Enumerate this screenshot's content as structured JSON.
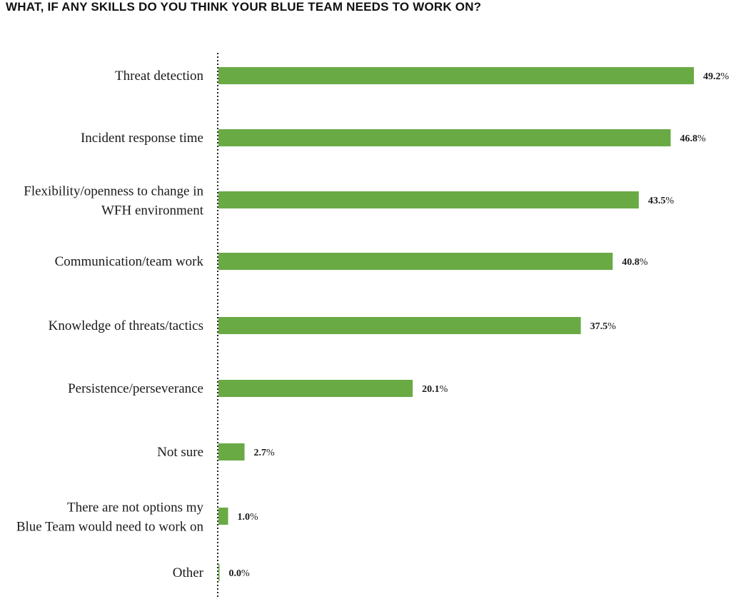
{
  "chart_data": {
    "type": "bar",
    "orientation": "horizontal",
    "title": "WHAT, IF ANY SKILLS DO YOU THINK YOUR BLUE TEAM NEEDS TO WORK ON?",
    "categories": [
      "Threat detection",
      "Incident response time",
      "Flexibility/openness to change in WFH environment",
      "Communication/team work",
      "Knowledge of threats/tactics",
      "Persistence/perseverance",
      "Not sure",
      "There are not options my Blue Team would need to work on",
      "Other"
    ],
    "category_lines": [
      [
        "Threat detection"
      ],
      [
        "Incident response time"
      ],
      [
        "Flexibility/openness to change in",
        "WFH environment"
      ],
      [
        "Communication/team work"
      ],
      [
        "Knowledge of threats/tactics"
      ],
      [
        "Persistence/perseverance"
      ],
      [
        "Not sure"
      ],
      [
        "There are not options my",
        "Blue Team would need to work on"
      ],
      [
        "Other"
      ]
    ],
    "values": [
      49.2,
      46.8,
      43.5,
      40.8,
      37.5,
      20.1,
      2.7,
      1.0,
      0.0
    ],
    "value_labels": [
      "49.2",
      "46.8",
      "43.5",
      "40.8",
      "37.5",
      "20.1",
      "2.7",
      "1.0",
      "0.0"
    ],
    "value_suffix": "%",
    "xlim": [
      0,
      49.2
    ],
    "grid": false,
    "bar_color": "#6aaa45",
    "axis_color": "#222222"
  }
}
